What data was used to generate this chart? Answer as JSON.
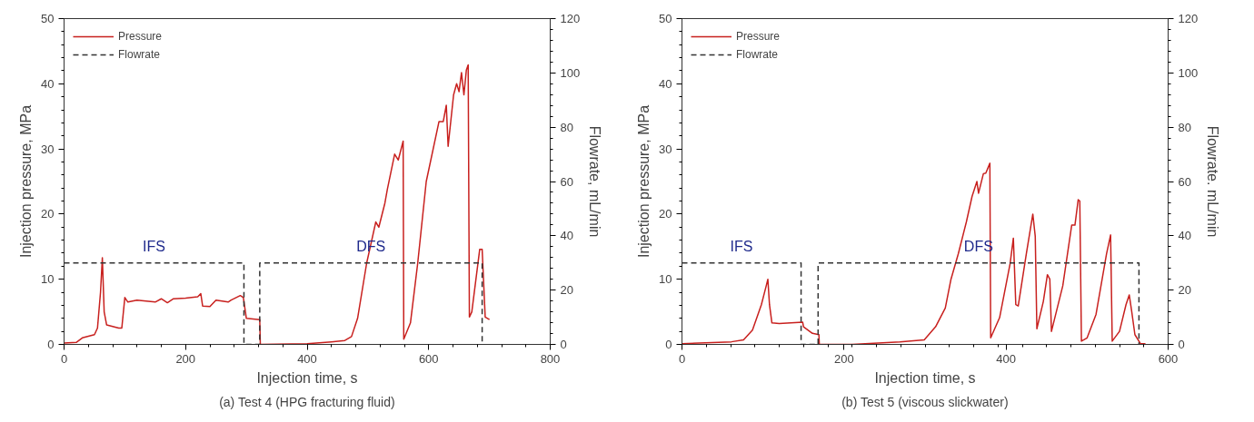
{
  "chart_data": [
    {
      "type": "line",
      "title": "(a) Test 4 (HPG fracturing fluid)",
      "xlabel": "Injection time, s",
      "ylabel": "Injection pressure, MPa",
      "y2label": "Flowrate, mL/min",
      "legend": "top left",
      "xlim": [
        0,
        800
      ],
      "ylim": [
        0,
        50
      ],
      "y2lim": [
        0,
        120
      ],
      "xticks": [
        0,
        {
          "value": 40,
          "label": null
        },
        {
          "value": 80,
          "label": null
        },
        {
          "value": 120,
          "label": null
        },
        {
          "value": 160,
          "label": null
        },
        200,
        {
          "value": 240,
          "label": null
        },
        {
          "value": 280,
          "label": null
        },
        {
          "value": 320,
          "label": null
        },
        {
          "value": 360,
          "label": null
        },
        400,
        {
          "value": 440,
          "label": null
        },
        {
          "value": 480,
          "label": null
        },
        {
          "value": 520,
          "label": null
        },
        {
          "value": 560,
          "label": null
        },
        600,
        {
          "value": 640,
          "label": null
        },
        {
          "value": 680,
          "label": null
        },
        {
          "value": 720,
          "label": null
        },
        {
          "value": 760,
          "label": null
        },
        800
      ],
      "yticks": [
        0,
        {
          "value": 2,
          "label": null
        },
        {
          "value": 4,
          "label": null
        },
        {
          "value": 6,
          "label": null
        },
        {
          "value": 8,
          "label": null
        },
        10,
        {
          "value": 12,
          "label": null
        },
        {
          "value": 14,
          "label": null
        },
        {
          "value": 16,
          "label": null
        },
        {
          "value": 18,
          "label": null
        },
        20,
        {
          "value": 22,
          "label": null
        },
        {
          "value": 24,
          "label": null
        },
        {
          "value": 26,
          "label": null
        },
        {
          "value": 28,
          "label": null
        },
        30,
        {
          "value": 32,
          "label": null
        },
        {
          "value": 34,
          "label": null
        },
        {
          "value": 36,
          "label": null
        },
        {
          "value": 38,
          "label": null
        },
        40,
        {
          "value": 42,
          "label": null
        },
        {
          "value": 44,
          "label": null
        },
        {
          "value": 46,
          "label": null
        },
        {
          "value": 48,
          "label": null
        },
        50
      ],
      "y2ticks": [
        0,
        {
          "value": 4,
          "label": null
        },
        {
          "value": 8,
          "label": null
        },
        {
          "value": 12,
          "label": null
        },
        {
          "value": 16,
          "label": null
        },
        20,
        {
          "value": 24,
          "label": null
        },
        {
          "value": 28,
          "label": null
        },
        {
          "value": 32,
          "label": null
        },
        {
          "value": 36,
          "label": null
        },
        40,
        {
          "value": 44,
          "label": null
        },
        {
          "value": 48,
          "label": null
        },
        {
          "value": 52,
          "label": null
        },
        {
          "value": 56,
          "label": null
        },
        60,
        {
          "value": 64,
          "label": null
        },
        {
          "value": 68,
          "label": null
        },
        {
          "value": 72,
          "label": null
        },
        {
          "value": 76,
          "label": null
        },
        80,
        {
          "value": 84,
          "label": null
        },
        {
          "value": 88,
          "label": null
        },
        {
          "value": 92,
          "label": null
        },
        {
          "value": 96,
          "label": null
        },
        100,
        {
          "value": 104,
          "label": null
        },
        {
          "value": 108,
          "label": null
        },
        {
          "value": 112,
          "label": null
        },
        {
          "value": 116,
          "label": null
        },
        120
      ],
      "annotations": [
        "IFS",
        "DFS"
      ],
      "series": [
        {
          "name": "Pressure",
          "color": "#c8201e",
          "line_style": "solid",
          "x": [
            0,
            20,
            30,
            50,
            55,
            60,
            63,
            66,
            70,
            90,
            95,
            100,
            105,
            120,
            150,
            160,
            170,
            180,
            200,
            220,
            225,
            228,
            240,
            250,
            270,
            275,
            290,
            295,
            300,
            322,
            323,
            400,
            440,
            462,
            473,
            483,
            498,
            513,
            518,
            528,
            532,
            544,
            550,
            558,
            559,
            570,
            582,
            596,
            617,
            624,
            629,
            632,
            641,
            646,
            650,
            654,
            658,
            662,
            665,
            667,
            671,
            684,
            688,
            693,
            700
          ],
          "values": [
            0.2,
            0.3,
            1.0,
            1.5,
            2.5,
            8,
            13.3,
            5,
            3,
            2.5,
            2.5,
            7.2,
            6.5,
            6.8,
            6.5,
            7.0,
            6.4,
            7.0,
            7.1,
            7.3,
            7.8,
            5.9,
            5.8,
            6.8,
            6.5,
            6.8,
            7.5,
            7.2,
            4.0,
            3.8,
            0,
            0.1,
            0.4,
            0.6,
            1.2,
            4,
            12.5,
            18.8,
            18,
            21.7,
            23.8,
            29.2,
            28.3,
            31.2,
            0.8,
            3.3,
            12.5,
            25,
            34.2,
            34.2,
            36.7,
            30.4,
            38.3,
            40,
            38.8,
            41.7,
            38.3,
            42.1,
            42.9,
            4.2,
            5,
            14.6,
            14.6,
            4.2,
            3.8
          ]
        },
        {
          "name": "Flowrate",
          "color": "#333333",
          "line_style": "dashed",
          "axis": "y2",
          "x": [
            0,
            296,
            296,
            322,
            322,
            688,
            688
          ],
          "values": [
            30,
            30,
            0,
            0,
            30,
            30,
            0
          ]
        }
      ]
    },
    {
      "type": "line",
      "title": "(b) Test 5 (viscous slickwater)",
      "xlabel": "Injection time, s",
      "ylabel": "Injection pressure, MPa",
      "y2label": "Flowrate. mL/min",
      "legend": "top left",
      "xlim": [
        0,
        600
      ],
      "ylim": [
        0,
        50
      ],
      "y2lim": [
        0,
        120
      ],
      "xticks": [
        0,
        {
          "value": 30,
          "label": null
        },
        {
          "value": 60,
          "label": null
        },
        {
          "value": 90,
          "label": null
        },
        {
          "value": 120,
          "label": null
        },
        {
          "value": 150,
          "label": null
        },
        {
          "value": 180,
          "label": null
        },
        200,
        {
          "value": 210,
          "label": null
        },
        {
          "value": 240,
          "label": null
        },
        {
          "value": 270,
          "label": null
        },
        {
          "value": 300,
          "label": null
        },
        {
          "value": 330,
          "label": null
        },
        {
          "value": 360,
          "label": null
        },
        {
          "value": 390,
          "label": null
        },
        400,
        {
          "value": 420,
          "label": null
        },
        {
          "value": 450,
          "label": null
        },
        {
          "value": 480,
          "label": null
        },
        {
          "value": 510,
          "label": null
        },
        {
          "value": 540,
          "label": null
        },
        {
          "value": 570,
          "label": null
        },
        600
      ],
      "yticks": [
        0,
        {
          "value": 2,
          "label": null
        },
        {
          "value": 4,
          "label": null
        },
        {
          "value": 6,
          "label": null
        },
        {
          "value": 8,
          "label": null
        },
        10,
        {
          "value": 12,
          "label": null
        },
        {
          "value": 14,
          "label": null
        },
        {
          "value": 16,
          "label": null
        },
        {
          "value": 18,
          "label": null
        },
        20,
        {
          "value": 22,
          "label": null
        },
        {
          "value": 24,
          "label": null
        },
        {
          "value": 26,
          "label": null
        },
        {
          "value": 28,
          "label": null
        },
        30,
        {
          "value": 32,
          "label": null
        },
        {
          "value": 34,
          "label": null
        },
        {
          "value": 36,
          "label": null
        },
        {
          "value": 38,
          "label": null
        },
        40,
        {
          "value": 42,
          "label": null
        },
        {
          "value": 44,
          "label": null
        },
        {
          "value": 46,
          "label": null
        },
        {
          "value": 48,
          "label": null
        },
        50
      ],
      "y2ticks": [
        0,
        {
          "value": 4,
          "label": null
        },
        {
          "value": 8,
          "label": null
        },
        {
          "value": 12,
          "label": null
        },
        {
          "value": 16,
          "label": null
        },
        20,
        {
          "value": 24,
          "label": null
        },
        {
          "value": 28,
          "label": null
        },
        {
          "value": 32,
          "label": null
        },
        {
          "value": 36,
          "label": null
        },
        40,
        {
          "value": 44,
          "label": null
        },
        {
          "value": 48,
          "label": null
        },
        {
          "value": 52,
          "label": null
        },
        {
          "value": 56,
          "label": null
        },
        60,
        {
          "value": 64,
          "label": null
        },
        {
          "value": 68,
          "label": null
        },
        {
          "value": 72,
          "label": null
        },
        {
          "value": 76,
          "label": null
        },
        80,
        {
          "value": 84,
          "label": null
        },
        {
          "value": 88,
          "label": null
        },
        {
          "value": 92,
          "label": null
        },
        {
          "value": 96,
          "label": null
        },
        100,
        {
          "value": 104,
          "label": null
        },
        {
          "value": 108,
          "label": null
        },
        {
          "value": 112,
          "label": null
        },
        {
          "value": 116,
          "label": null
        },
        120
      ],
      "annotations": [
        "IFS",
        "DFS"
      ],
      "series": [
        {
          "name": "Pressure",
          "color": "#c8201e",
          "line_style": "solid",
          "x": [
            0,
            61,
            76,
            87,
            98,
            104,
            106,
            108,
            111,
            120,
            149,
            150,
            161,
            169,
            169.5,
            210,
            269,
            299,
            313,
            325,
            332,
            341,
            351,
            358,
            364,
            366,
            372,
            375,
            380,
            381,
            392,
            405,
            409,
            412,
            415,
            425,
            433,
            436,
            438,
            446,
            451,
            454,
            456,
            470,
            481,
            485,
            489,
            491,
            493,
            500,
            511,
            524,
            529,
            531,
            540,
            548,
            552,
            555,
            559,
            566,
            572
          ],
          "values": [
            0.1,
            0.4,
            0.7,
            2.2,
            6.1,
            9,
            10,
            6.1,
            3.3,
            3.2,
            3.4,
            2.7,
            1.7,
            1.5,
            0,
            0,
            0.4,
            0.7,
            2.7,
            5.6,
            10,
            13.9,
            18.8,
            22.7,
            25,
            23.2,
            26.2,
            26.3,
            27.8,
            1.0,
            4.1,
            12.4,
            16.3,
            6.1,
            5.9,
            13.9,
            20,
            16.6,
            2.4,
            6.6,
            10.7,
            10,
            2.0,
            9,
            18.3,
            18.3,
            22.2,
            22,
            0.5,
            1.0,
            4.6,
            13.9,
            16.8,
            0.5,
            2.0,
            6.1,
            7.6,
            5.1,
            1.5,
            0.1,
            0.1
          ]
        },
        {
          "name": "Flowrate",
          "color": "#333333",
          "line_style": "dashed",
          "axis": "y2",
          "x": [
            0,
            147,
            147,
            168,
            168,
            564,
            564
          ],
          "values": [
            30,
            30,
            0,
            0,
            30,
            30,
            0
          ]
        }
      ]
    }
  ]
}
